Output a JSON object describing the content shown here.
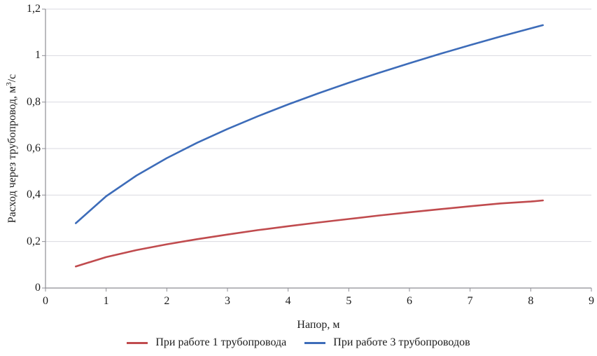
{
  "figure": {
    "background": "#ffffff",
    "text_color": "#1b1b1b"
  },
  "chart_data": {
    "type": "line",
    "title": "",
    "xlabel": "Напор, м",
    "ylabel": "Расход через трубопровод, м³/с",
    "ylabel_parts": {
      "prefix": "Расход через трубопровод, м",
      "sup": "3",
      "suffix": "/с"
    },
    "xlim": [
      0,
      9
    ],
    "ylim": [
      0,
      1.2
    ],
    "xticks": [
      0,
      1,
      2,
      3,
      4,
      5,
      6,
      7,
      8,
      9
    ],
    "xtick_labels": [
      "0",
      "1",
      "2",
      "3",
      "4",
      "5",
      "6",
      "7",
      "8",
      "9"
    ],
    "yticks": [
      0,
      0.2,
      0.4,
      0.6,
      0.8,
      1.0,
      1.2
    ],
    "ytick_labels": [
      "0",
      "0,2",
      "0,4",
      "0,6",
      "0,8",
      "1",
      "1,2"
    ],
    "grid": "horizontal",
    "grid_color": "#d9d9e0",
    "axis_color": "#8e8e94",
    "legend_position": "bottom",
    "series": [
      {
        "name": "При работе 1 трубопровода",
        "color": "#c04b4e",
        "points": [
          [
            0.5,
            0.093
          ],
          [
            1,
            0.133
          ],
          [
            1.5,
            0.163
          ],
          [
            2,
            0.188
          ],
          [
            2.5,
            0.21
          ],
          [
            3,
            0.23
          ],
          [
            3.5,
            0.249
          ],
          [
            4,
            0.266
          ],
          [
            4.5,
            0.282
          ],
          [
            5,
            0.297
          ],
          [
            5.5,
            0.312
          ],
          [
            6,
            0.326
          ],
          [
            6.5,
            0.339
          ],
          [
            7,
            0.352
          ],
          [
            7.5,
            0.364
          ],
          [
            8,
            0.372
          ],
          [
            8.2,
            0.377
          ]
        ]
      },
      {
        "name": "При работе 3 трубопроводов",
        "color": "#3d6cb9",
        "points": [
          [
            0.5,
            0.279
          ],
          [
            1,
            0.395
          ],
          [
            1.5,
            0.484
          ],
          [
            2,
            0.559
          ],
          [
            2.5,
            0.625
          ],
          [
            3,
            0.684
          ],
          [
            3.5,
            0.739
          ],
          [
            4,
            0.79
          ],
          [
            4.5,
            0.838
          ],
          [
            5,
            0.883
          ],
          [
            5.5,
            0.926
          ],
          [
            6,
            0.967
          ],
          [
            6.5,
            1.007
          ],
          [
            7,
            1.045
          ],
          [
            7.5,
            1.082
          ],
          [
            8,
            1.117
          ],
          [
            8.2,
            1.131
          ]
        ]
      }
    ]
  }
}
